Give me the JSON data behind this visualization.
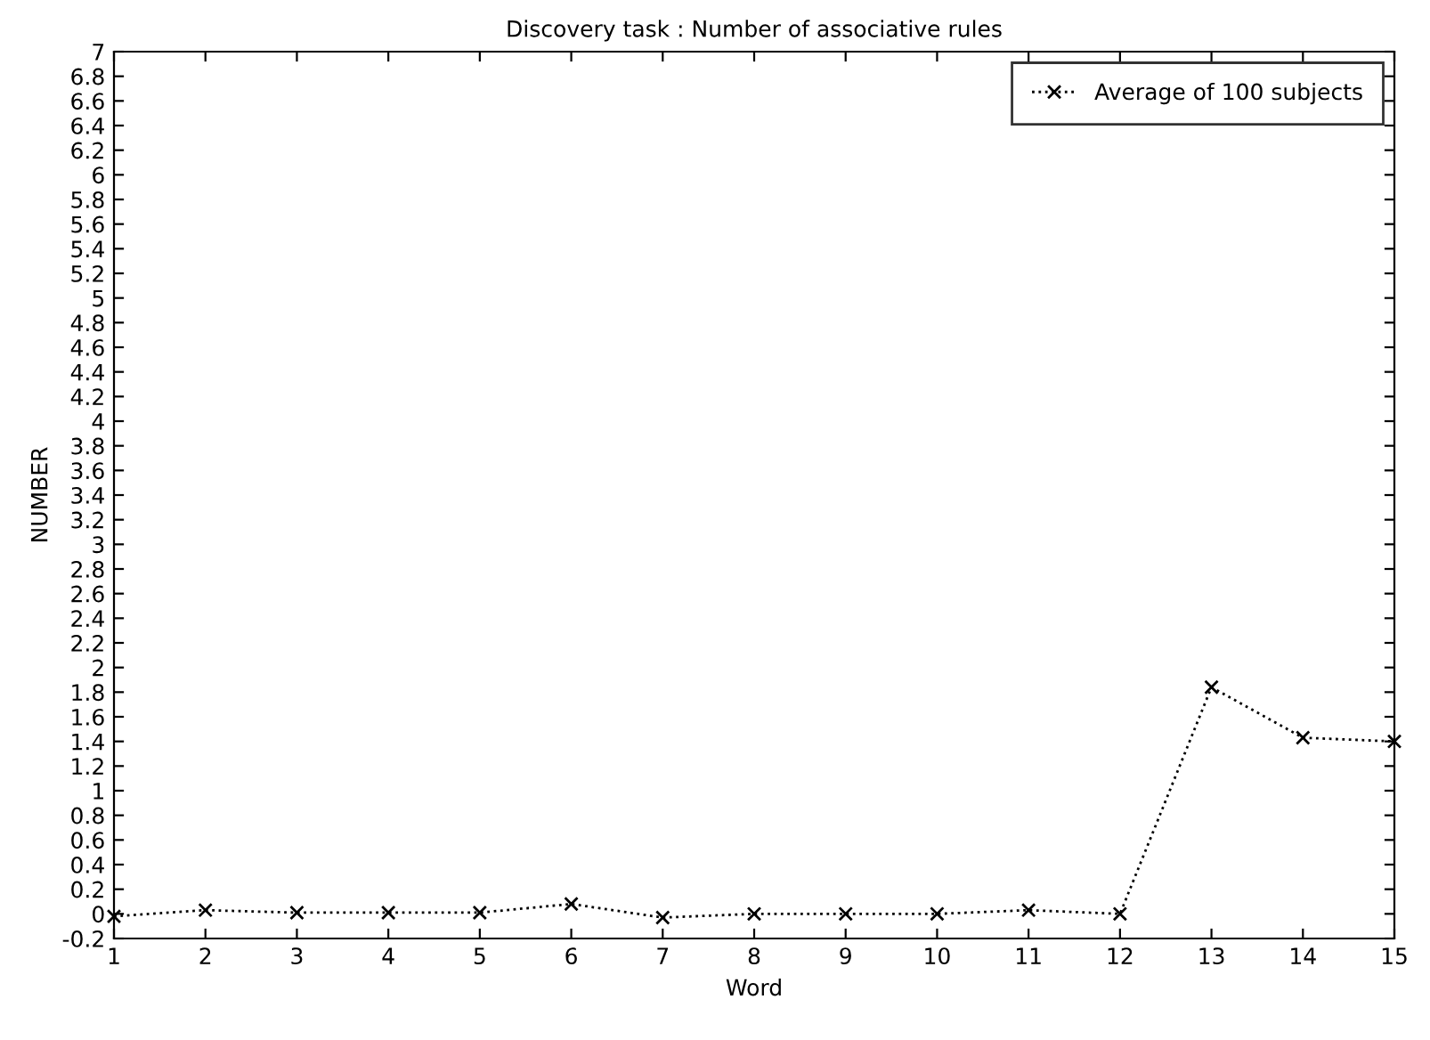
{
  "chart_data": {
    "type": "line",
    "title": "Discovery task : Number of associative rules",
    "xlabel": "Word",
    "ylabel": "NUMBER",
    "x": [
      1,
      2,
      3,
      4,
      5,
      6,
      7,
      8,
      9,
      10,
      11,
      12,
      13,
      14,
      15
    ],
    "series": [
      {
        "name": "Average of 100 subjects",
        "color": "#000000",
        "values": [
          -0.02,
          0.03,
          0.01,
          0.01,
          0.01,
          0.08,
          -0.03,
          0.0,
          0.0,
          0.0,
          0.03,
          0.0,
          1.84,
          1.43,
          1.4
        ]
      }
    ],
    "xlim": [
      1,
      15
    ],
    "xticks": [
      1,
      2,
      3,
      4,
      5,
      6,
      7,
      8,
      9,
      10,
      11,
      12,
      13,
      14,
      15
    ],
    "ylim": [
      -0.2,
      7
    ],
    "yticks": [
      -0.2,
      0,
      0.2,
      0.4,
      0.6,
      0.8,
      1,
      1.2,
      1.4,
      1.6,
      1.8,
      2,
      2.2,
      2.4,
      2.6,
      2.8,
      3,
      3.2,
      3.4,
      3.6,
      3.8,
      4,
      4.2,
      4.4,
      4.6,
      4.8,
      5,
      5.2,
      5.4,
      5.6,
      5.8,
      6,
      6.2,
      6.4,
      6.6,
      6.8,
      7
    ],
    "marker": "cross",
    "line_style": "dotted",
    "legend": "top right",
    "grid": false
  }
}
